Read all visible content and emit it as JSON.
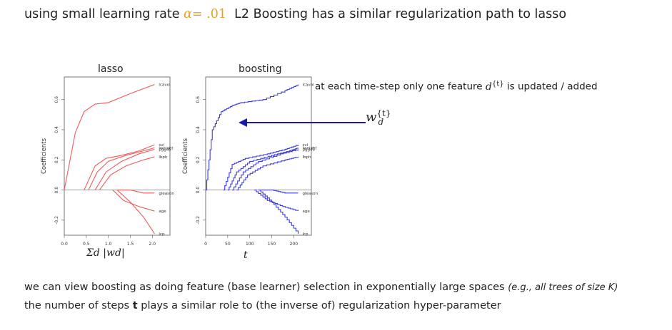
{
  "headline": {
    "prefix": "using small learning rate",
    "alpha_symbol": "α",
    "alpha_eq": "= .01",
    "suffix": "L2 Boosting has a similar regularization path to lasso"
  },
  "colors": {
    "accent": "#e8a020",
    "lasso_line": "#ef5b5b",
    "boost_line": "#3a3ae0",
    "arrow": "#1a1aa8"
  },
  "chart_data": [
    {
      "type": "line",
      "title": "lasso",
      "xlabel": "Σd |wd|",
      "ylabel": "Coefficients",
      "xticks": [
        "0.0",
        "0.5",
        "1.0",
        "1.5",
        "2.0"
      ],
      "yticks": [
        "-0.2",
        "0.0",
        "0.2",
        "0.4",
        "0.6"
      ],
      "xlim": [
        0,
        2.4
      ],
      "ylim": [
        -0.3,
        0.75
      ],
      "series": [
        {
          "name": "lcavol",
          "x": [
            0,
            0.25,
            0.45,
            0.7,
            1.0,
            1.5,
            2.05
          ],
          "y": [
            0,
            0.38,
            0.52,
            0.57,
            0.58,
            0.64,
            0.7
          ]
        },
        {
          "name": "svi",
          "x": [
            0.45,
            0.7,
            0.95,
            1.3,
            1.7,
            2.05
          ],
          "y": [
            0,
            0.16,
            0.21,
            0.23,
            0.26,
            0.3
          ]
        },
        {
          "name": "lweight",
          "x": [
            0.55,
            0.75,
            1.0,
            1.4,
            1.8,
            2.05
          ],
          "y": [
            0,
            0.12,
            0.19,
            0.23,
            0.26,
            0.28
          ]
        },
        {
          "name": "pgg45",
          "x": [
            0.7,
            0.95,
            1.3,
            1.7,
            2.05
          ],
          "y": [
            0,
            0.12,
            0.19,
            0.24,
            0.27
          ]
        },
        {
          "name": "lbph",
          "x": [
            0.8,
            1.05,
            1.4,
            1.8,
            2.05
          ],
          "y": [
            0,
            0.1,
            0.16,
            0.2,
            0.22
          ]
        },
        {
          "name": "gleason",
          "x": [
            1.2,
            1.5,
            1.8,
            2.05
          ],
          "y": [
            0,
            0.0,
            -0.02,
            -0.02
          ]
        },
        {
          "name": "age",
          "x": [
            1.1,
            1.35,
            1.7,
            2.05
          ],
          "y": [
            0,
            -0.07,
            -0.11,
            -0.14
          ]
        },
        {
          "name": "lcp",
          "x": [
            1.2,
            1.5,
            1.8,
            2.05
          ],
          "y": [
            0,
            -0.08,
            -0.18,
            -0.29
          ]
        }
      ]
    },
    {
      "type": "line",
      "title": "boosting",
      "xlabel": "t",
      "ylabel": "Coefficients",
      "xticks": [
        "0",
        "50",
        "100",
        "150",
        "200"
      ],
      "yticks": [
        "-0.2",
        "0.0",
        "0.2",
        "0.4",
        "0.6"
      ],
      "xlim": [
        0,
        240
      ],
      "ylim": [
        -0.3,
        0.75
      ],
      "series": [
        {
          "name": "lcavol",
          "x": [
            0,
            15,
            35,
            60,
            80,
            130,
            180,
            210
          ],
          "y": [
            0,
            0.4,
            0.52,
            0.56,
            0.58,
            0.6,
            0.66,
            0.7
          ]
        },
        {
          "name": "svi",
          "x": [
            40,
            60,
            90,
            140,
            180,
            210
          ],
          "y": [
            0,
            0.17,
            0.21,
            0.24,
            0.27,
            0.3
          ]
        },
        {
          "name": "lweight",
          "x": [
            50,
            70,
            100,
            150,
            190,
            210
          ],
          "y": [
            0,
            0.12,
            0.19,
            0.23,
            0.26,
            0.28
          ]
        },
        {
          "name": "pgg45",
          "x": [
            60,
            85,
            120,
            170,
            210
          ],
          "y": [
            0,
            0.12,
            0.19,
            0.24,
            0.27
          ]
        },
        {
          "name": "lbph",
          "x": [
            70,
            95,
            130,
            180,
            210
          ],
          "y": [
            0,
            0.1,
            0.16,
            0.2,
            0.22
          ]
        },
        {
          "name": "gleason",
          "x": [
            120,
            150,
            180,
            210
          ],
          "y": [
            0,
            0.0,
            -0.02,
            -0.02
          ]
        },
        {
          "name": "age",
          "x": [
            110,
            140,
            175,
            210
          ],
          "y": [
            0,
            -0.07,
            -0.11,
            -0.14
          ]
        },
        {
          "name": "lcp",
          "x": [
            120,
            150,
            180,
            210
          ],
          "y": [
            0,
            -0.08,
            -0.18,
            -0.29
          ]
        }
      ]
    }
  ],
  "annotation": {
    "prefix": "at each time-step only one feature",
    "math": "d",
    "math_sup": "{t}",
    "suffix": "is updated / added",
    "weight_symbol": "w",
    "weight_sup": "{t}",
    "weight_sub": "d"
  },
  "bottom": {
    "line1": "we can view boosting as doing feature (base learner) selection in exponentially large spaces",
    "line1_italic": "(e.g., all trees of size K)",
    "line2_prefix": "the number of steps",
    "line2_bold": "t",
    "line2_suffix": "plays a similar role to (the inverse of) regularization hyper-parameter"
  }
}
